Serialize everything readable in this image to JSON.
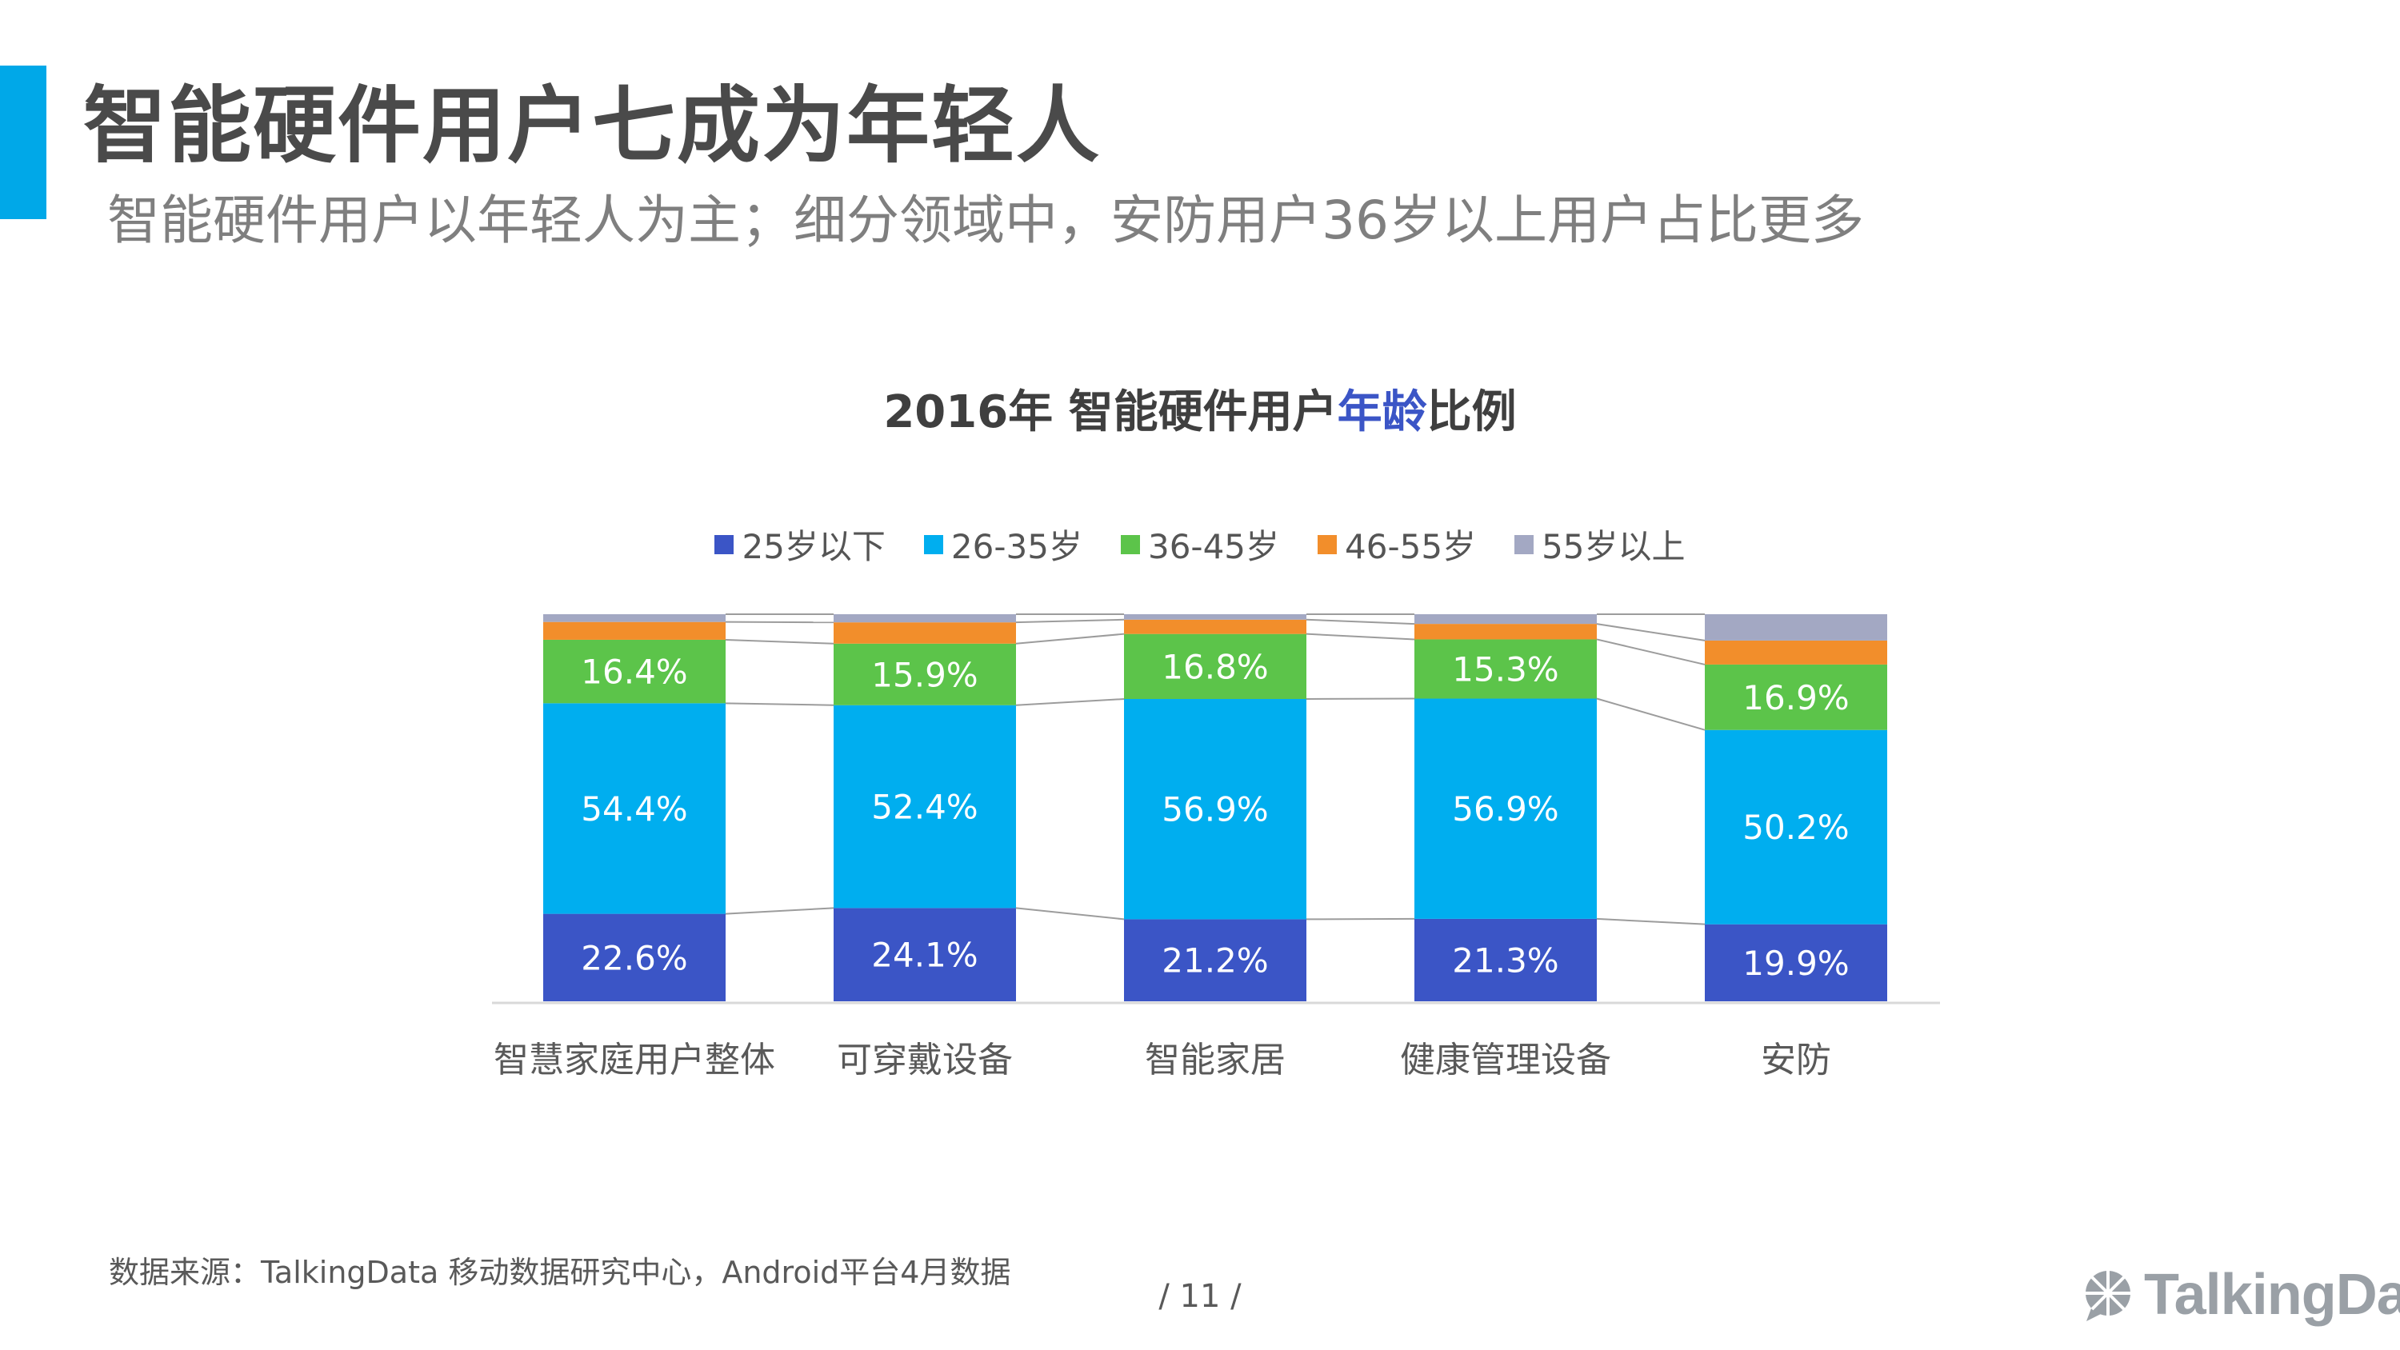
{
  "header": {
    "title": "智能硬件用户七成为年轻人",
    "subtitle": "智能硬件用户以年轻人为主；细分领域中，安防用户36岁以上用户占比更多"
  },
  "chart_title": {
    "prefix": "2016年 智能硬件用户",
    "highlight": "年龄",
    "suffix": "比例"
  },
  "chart_data": {
    "type": "bar",
    "stacked": true,
    "percent_stacked": true,
    "categories": [
      "智慧家庭用户整体",
      "可穿戴设备",
      "智能家居",
      "健康管理设备",
      "安防"
    ],
    "series": [
      {
        "name": "25岁以下",
        "values": [
          22.6,
          24.1,
          21.2,
          21.3,
          19.9
        ],
        "color": "#3b55c6",
        "label": true
      },
      {
        "name": "26-35岁",
        "values": [
          54.4,
          52.4,
          56.9,
          56.9,
          50.2
        ],
        "color": "#00aeef",
        "label": true
      },
      {
        "name": "36-45岁",
        "values": [
          16.4,
          15.9,
          16.8,
          15.3,
          16.9
        ],
        "color": "#5cc44a",
        "label": true
      },
      {
        "name": "46-55岁",
        "values": [
          4.6,
          5.5,
          3.7,
          4.0,
          6.2
        ],
        "color": "#f28e2b",
        "label": false
      },
      {
        "name": "55岁以上",
        "values": [
          2.0,
          2.1,
          1.4,
          2.5,
          6.8
        ],
        "color": "#a3a8c3",
        "label": false
      }
    ],
    "ylim": [
      0,
      100
    ],
    "legend_position": "top",
    "grid": false,
    "connector_lines": true
  },
  "footer": {
    "source": "数据来源：TalkingData 移动数据研究中心，Android平台4月数据",
    "page": "/   11   /",
    "logo_text": "TalkingData"
  },
  "colors": {
    "accent": "#00a8e8",
    "title_highlight": "#3b55c6"
  }
}
